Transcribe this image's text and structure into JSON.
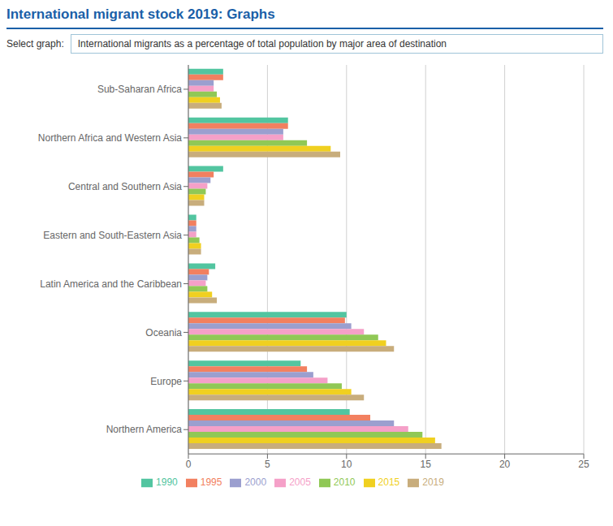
{
  "chart_data": {
    "type": "bar",
    "orientation": "horizontal",
    "title": "International migrant stock 2019: Graphs",
    "subtitle": "International migrants as a percentage of total population by major area of destination",
    "annotations": [
      "Select graph:"
    ],
    "categories": [
      "Sub-Saharan Africa",
      "Northern Africa and Western Asia",
      "Central and Southern Asia",
      "Eastern and South-Eastern Asia",
      "Latin America and the Caribbean",
      "Oceania",
      "Europe",
      "Northern America"
    ],
    "series": [
      {
        "name": "1990",
        "color": "#52c5a0",
        "values": [
          2.2,
          6.3,
          2.2,
          0.5,
          1.7,
          10.0,
          7.1,
          10.2
        ]
      },
      {
        "name": "1995",
        "color": "#f28060",
        "values": [
          2.2,
          6.3,
          1.6,
          0.5,
          1.3,
          9.9,
          7.5,
          11.5
        ]
      },
      {
        "name": "2000",
        "color": "#9b9fcf",
        "values": [
          1.6,
          6.0,
          1.4,
          0.5,
          1.2,
          10.3,
          7.9,
          13.0
        ]
      },
      {
        "name": "2005",
        "color": "#f5a0c8",
        "values": [
          1.6,
          6.0,
          1.2,
          0.5,
          1.1,
          11.1,
          8.8,
          13.9
        ]
      },
      {
        "name": "2010",
        "color": "#90c856",
        "values": [
          1.8,
          7.5,
          1.1,
          0.7,
          1.2,
          12.0,
          9.7,
          14.8
        ]
      },
      {
        "name": "2015",
        "color": "#f0d020",
        "values": [
          2.0,
          9.0,
          1.0,
          0.8,
          1.5,
          12.5,
          10.3,
          15.6
        ]
      },
      {
        "name": "2019",
        "color": "#c8ad7c",
        "values": [
          2.1,
          9.6,
          1.0,
          0.8,
          1.8,
          13.0,
          11.1,
          16.0
        ]
      }
    ],
    "xlim": [
      0,
      25
    ],
    "xticks": [
      0,
      5,
      10,
      15,
      20,
      25
    ],
    "grid": true,
    "legend": "bottom"
  }
}
